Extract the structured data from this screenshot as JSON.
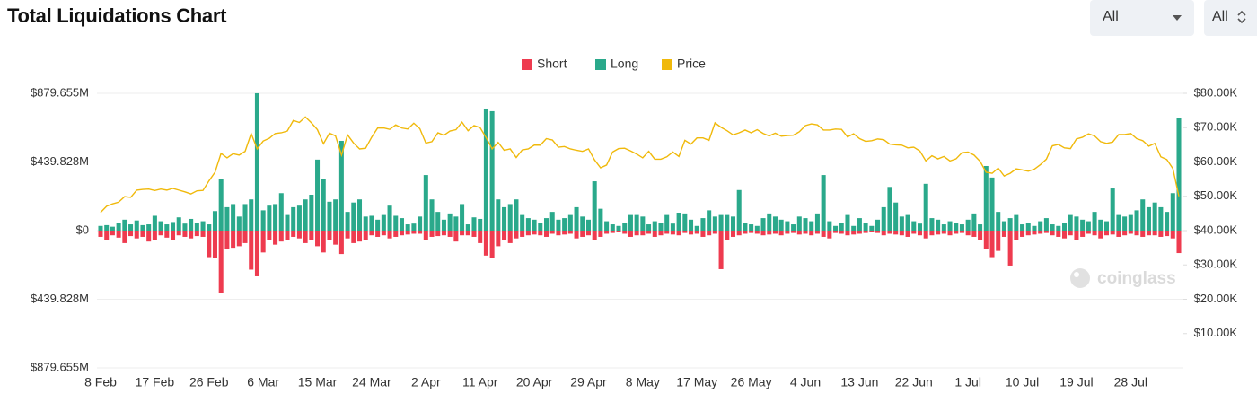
{
  "filters": [
    "All",
    "All"
  ],
  "watermark": "coinglass",
  "chart_data": {
    "type": "bar",
    "title": "Total Liquidations Chart",
    "categories": [
      "8 Feb",
      null,
      null,
      null,
      null,
      null,
      null,
      null,
      null,
      "17 Feb",
      null,
      null,
      null,
      null,
      null,
      null,
      null,
      null,
      "26 Feb",
      null,
      null,
      null,
      null,
      null,
      null,
      null,
      null,
      "6 Mar",
      null,
      null,
      null,
      null,
      null,
      null,
      null,
      null,
      "15 Mar",
      null,
      null,
      null,
      null,
      null,
      null,
      null,
      null,
      "24 Mar",
      null,
      null,
      null,
      null,
      null,
      null,
      null,
      null,
      "2 Apr",
      null,
      null,
      null,
      null,
      null,
      null,
      null,
      null,
      "11 Apr",
      null,
      null,
      null,
      null,
      null,
      null,
      null,
      null,
      "20 Apr",
      null,
      null,
      null,
      null,
      null,
      null,
      null,
      null,
      "29 Apr",
      null,
      null,
      null,
      null,
      null,
      null,
      null,
      null,
      "8 May",
      null,
      null,
      null,
      null,
      null,
      null,
      null,
      null,
      "17 May",
      null,
      null,
      null,
      null,
      null,
      null,
      null,
      null,
      "26 May",
      null,
      null,
      null,
      null,
      null,
      null,
      null,
      null,
      "4 Jun",
      null,
      null,
      null,
      null,
      null,
      null,
      null,
      null,
      "13 Jun",
      null,
      null,
      null,
      null,
      null,
      null,
      null,
      null,
      "22 Jun",
      null,
      null,
      null,
      null,
      null,
      null,
      null,
      null,
      "1 Jul",
      null,
      null,
      null,
      null,
      null,
      null,
      null,
      null,
      "10 Jul",
      null,
      null,
      null,
      null,
      null,
      null,
      null,
      null,
      "19 Jul",
      null,
      null,
      null,
      null,
      null,
      null,
      null,
      null,
      "28 Jul",
      null,
      null,
      null,
      null,
      null,
      null,
      null,
      null
    ],
    "series": [
      {
        "name": "Short",
        "color": "#ee3b4f",
        "values": [
          -40,
          -60,
          -30,
          -45,
          -80,
          -35,
          -50,
          -40,
          -70,
          -60,
          -30,
          -45,
          -60,
          -30,
          -40,
          -50,
          -35,
          -40,
          -170,
          -175,
          -397,
          -120,
          -110,
          -100,
          -80,
          -250,
          -293,
          -140,
          -60,
          -90,
          -70,
          -60,
          -40,
          -50,
          -80,
          -60,
          -100,
          -140,
          -60,
          -90,
          -150,
          -50,
          -80,
          -70,
          -60,
          -30,
          -40,
          -30,
          -50,
          -40,
          -30,
          -25,
          -20,
          -20,
          -60,
          -40,
          -35,
          -30,
          -40,
          -70,
          -30,
          -30,
          -40,
          -80,
          -160,
          -178,
          -100,
          -60,
          -80,
          -50,
          -40,
          -30,
          -25,
          -30,
          -40,
          -20,
          -30,
          -25,
          -20,
          -50,
          -40,
          -30,
          -60,
          -40,
          -20,
          -15,
          -10,
          -20,
          -40,
          -30,
          -30,
          -20,
          -40,
          -30,
          -20,
          -25,
          -30,
          -15,
          -25,
          -20,
          -40,
          -30,
          -20,
          -247,
          -60,
          -40,
          -30,
          -20,
          -15,
          -20,
          -30,
          -25,
          -20,
          -30,
          -20,
          -15,
          -25,
          -20,
          -30,
          -20,
          -40,
          -50,
          -15,
          -20,
          -30,
          -25,
          -20,
          -15,
          -10,
          -15,
          -30,
          -20,
          -25,
          -30,
          -40,
          -20,
          -30,
          -50,
          -30,
          -25,
          -20,
          -30,
          -20,
          -15,
          -30,
          -40,
          -60,
          -120,
          -170,
          -130,
          -40,
          -224,
          -60,
          -40,
          -30,
          -25,
          -20,
          -15,
          -30,
          -40,
          -50,
          -30,
          -60,
          -40,
          -20,
          -30,
          -50,
          -30,
          -25,
          -40,
          -30,
          -20,
          -30,
          -40,
          -30,
          -30,
          -40,
          -35,
          -50,
          -144
        ]
      },
      {
        "name": "Long",
        "color": "#2aa98b",
        "values": [
          30,
          35,
          25,
          50,
          70,
          40,
          65,
          35,
          40,
          95,
          60,
          40,
          55,
          85,
          45,
          75,
          50,
          60,
          40,
          125,
          330,
          150,
          170,
          90,
          170,
          200,
          880,
          130,
          160,
          170,
          240,
          100,
          150,
          160,
          200,
          230,
          455,
          330,
          185,
          200,
          575,
          120,
          180,
          200,
          90,
          95,
          70,
          100,
          160,
          95,
          80,
          40,
          45,
          90,
          356,
          200,
          120,
          70,
          110,
          90,
          170,
          40,
          85,
          75,
          782,
          765,
          200,
          150,
          170,
          200,
          100,
          80,
          70,
          50,
          80,
          120,
          70,
          80,
          100,
          150,
          90,
          70,
          316,
          140,
          60,
          40,
          30,
          50,
          100,
          100,
          90,
          40,
          60,
          50,
          100,
          45,
          115,
          110,
          70,
          30,
          80,
          130,
          90,
          100,
          100,
          90,
          260,
          50,
          40,
          30,
          80,
          110,
          90,
          70,
          60,
          40,
          90,
          80,
          60,
          110,
          356,
          60,
          30,
          50,
          100,
          30,
          80,
          50,
          30,
          70,
          150,
          280,
          180,
          90,
          100,
          60,
          45,
          300,
          80,
          70,
          40,
          60,
          50,
          40,
          70,
          110,
          40,
          414,
          340,
          120,
          60,
          80,
          100,
          40,
          50,
          30,
          60,
          80,
          40,
          30,
          50,
          100,
          90,
          70,
          60,
          120,
          70,
          60,
          270,
          100,
          90,
          100,
          130,
          200,
          150,
          180,
          150,
          120,
          240,
          719
        ]
      },
      {
        "name": "Price",
        "type": "line",
        "axis": "y2",
        "color": "#f0b90b",
        "values": [
          45300,
          47100,
          47800,
          48300,
          49900,
          49700,
          51800,
          52000,
          52100,
          51700,
          52100,
          51800,
          52300,
          51800,
          51300,
          50700,
          51600,
          51700,
          54500,
          57000,
          62500,
          61200,
          62400,
          62000,
          63100,
          68300,
          63800,
          66100,
          66900,
          68300,
          68500,
          69000,
          72100,
          71500,
          73100,
          71400,
          69400,
          65300,
          68400,
          67600,
          62000,
          67900,
          65500,
          63800,
          64000,
          67200,
          69900,
          69900,
          69500,
          70800,
          69900,
          69600,
          71300,
          69700,
          65500,
          65900,
          68500,
          67800,
          69000,
          69400,
          71600,
          69100,
          70600,
          70000,
          67100,
          63800,
          65700,
          63400,
          63800,
          61300,
          63500,
          63800,
          64900,
          64900,
          66800,
          66400,
          64300,
          64500,
          63800,
          63400,
          63100,
          63800,
          60600,
          58300,
          59100,
          62900,
          63900,
          64000,
          63200,
          62300,
          61200,
          63100,
          60800,
          60800,
          61500,
          62900,
          61600,
          66300,
          65200,
          67000,
          67000,
          66300,
          71400,
          70100,
          69100,
          67900,
          68500,
          69300,
          68500,
          69400,
          68300,
          67600,
          68400,
          67500,
          67700,
          67800,
          68800,
          70600,
          71100,
          70800,
          69300,
          69300,
          69600,
          69500,
          67300,
          68200,
          66800,
          66000,
          66200,
          66700,
          66500,
          65200,
          65000,
          64900,
          64100,
          64300,
          63200,
          60300,
          61800,
          60900,
          61600,
          60300,
          60900,
          62700,
          62900,
          62000,
          60200,
          57000,
          56700,
          58200,
          55900,
          56700,
          58000,
          57700,
          57300,
          57900,
          59200,
          60800,
          64700,
          65100,
          64100,
          63900,
          66700,
          67200,
          68200,
          67600,
          65900,
          65400,
          65800,
          68000,
          68000,
          68300,
          66800,
          66200,
          64600,
          65400,
          61500,
          60700,
          58100,
          50000
        ]
      }
    ],
    "ylim": [
      -879.655,
      879.655
    ],
    "yticks": [
      {
        "value": 879.655,
        "label": "$879.655M"
      },
      {
        "value": 439.828,
        "label": "$439.828M"
      },
      {
        "value": 0,
        "label": "$0"
      },
      {
        "value": -439.828,
        "label": "$439.828M"
      },
      {
        "value": -879.655,
        "label": "$879.655M"
      }
    ],
    "y2lim": [
      0,
      80000
    ],
    "y2ticks": [
      {
        "value": 10000,
        "label": "$10.00K"
      },
      {
        "value": 20000,
        "label": "$20.00K"
      },
      {
        "value": 30000,
        "label": "$30.00K"
      },
      {
        "value": 40000,
        "label": "$40.00K"
      },
      {
        "value": 50000,
        "label": "$50.00K"
      },
      {
        "value": 60000,
        "label": "$60.00K"
      },
      {
        "value": 70000,
        "label": "$70.00K"
      },
      {
        "value": 80000,
        "label": "$80.00K"
      }
    ],
    "grid": true,
    "legend": "top"
  }
}
